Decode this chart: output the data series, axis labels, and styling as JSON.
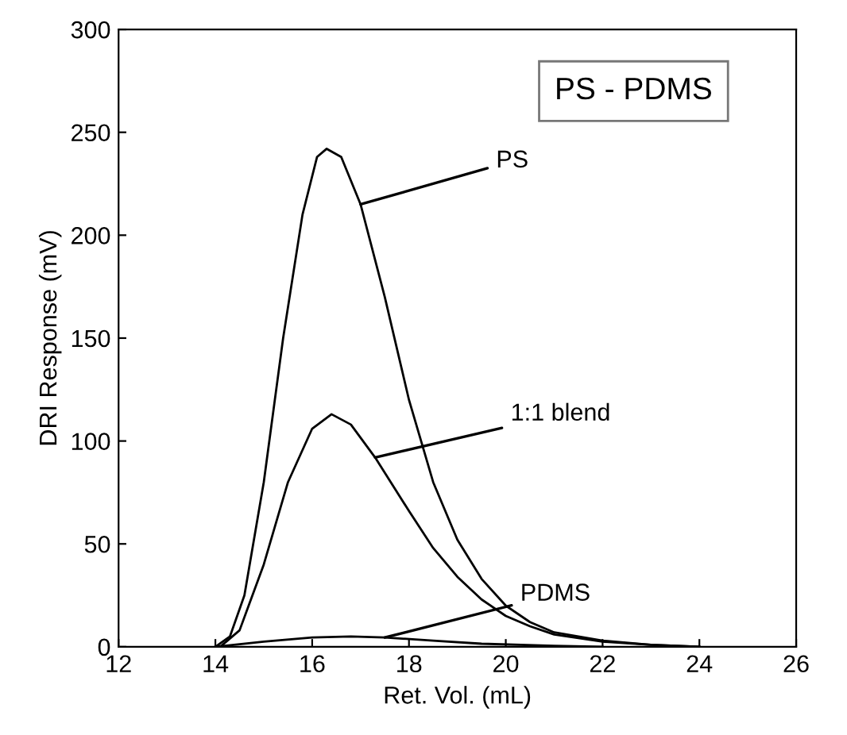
{
  "chart_data": {
    "type": "line",
    "title": "PS - PDMS",
    "xlabel": "Ret. Vol. (mL)",
    "ylabel": "DRI Response (mV)",
    "xlim": [
      12,
      26
    ],
    "xticks": [
      12,
      14,
      16,
      18,
      20,
      22,
      24,
      26
    ],
    "ylim": [
      0,
      300
    ],
    "yticks": [
      0,
      50,
      100,
      150,
      200,
      250,
      300
    ],
    "grid": false,
    "legend": false,
    "marker": "none",
    "line_style": "solid",
    "series": [
      {
        "color": "#000000",
        "x": [
          14.0,
          14.3,
          14.6,
          15.0,
          15.4,
          15.8,
          16.1,
          16.3,
          16.6,
          17.0,
          17.5,
          18.0,
          18.5,
          19.0,
          19.5,
          20.0,
          20.5,
          21.0,
          22.0,
          23.0,
          24.0
        ],
        "values": [
          0,
          5,
          25,
          80,
          150,
          210,
          238,
          242,
          238,
          215,
          170,
          120,
          80,
          52,
          33,
          20,
          12,
          7,
          3,
          1,
          0
        ]
      },
      {
        "color": "#000000",
        "x": [
          14.1,
          14.5,
          15.0,
          15.5,
          16.0,
          16.4,
          16.8,
          17.3,
          18.0,
          18.5,
          19.0,
          19.5,
          20.0,
          20.5,
          21.0,
          22.0,
          23.0,
          24.0
        ],
        "values": [
          0,
          8,
          40,
          80,
          106,
          113,
          108,
          92,
          66,
          48,
          34,
          23,
          15,
          10,
          6,
          2.5,
          1,
          0
        ]
      },
      {
        "color": "#000000",
        "x": [
          14.0,
          15.0,
          16.0,
          16.8,
          17.5,
          18.5,
          19.5,
          21.0,
          22.0
        ],
        "values": [
          0,
          2.5,
          4.5,
          5,
          4.5,
          3,
          1.5,
          0.5,
          0
        ]
      }
    ],
    "annotations": [
      {
        "text": "PS",
        "x": 17.0,
        "y": 215
      },
      {
        "text": "1:1 blend",
        "x": 17.3,
        "y": 92
      },
      {
        "text": "PDMS",
        "x": 17.5,
        "y": 4.5
      }
    ]
  }
}
